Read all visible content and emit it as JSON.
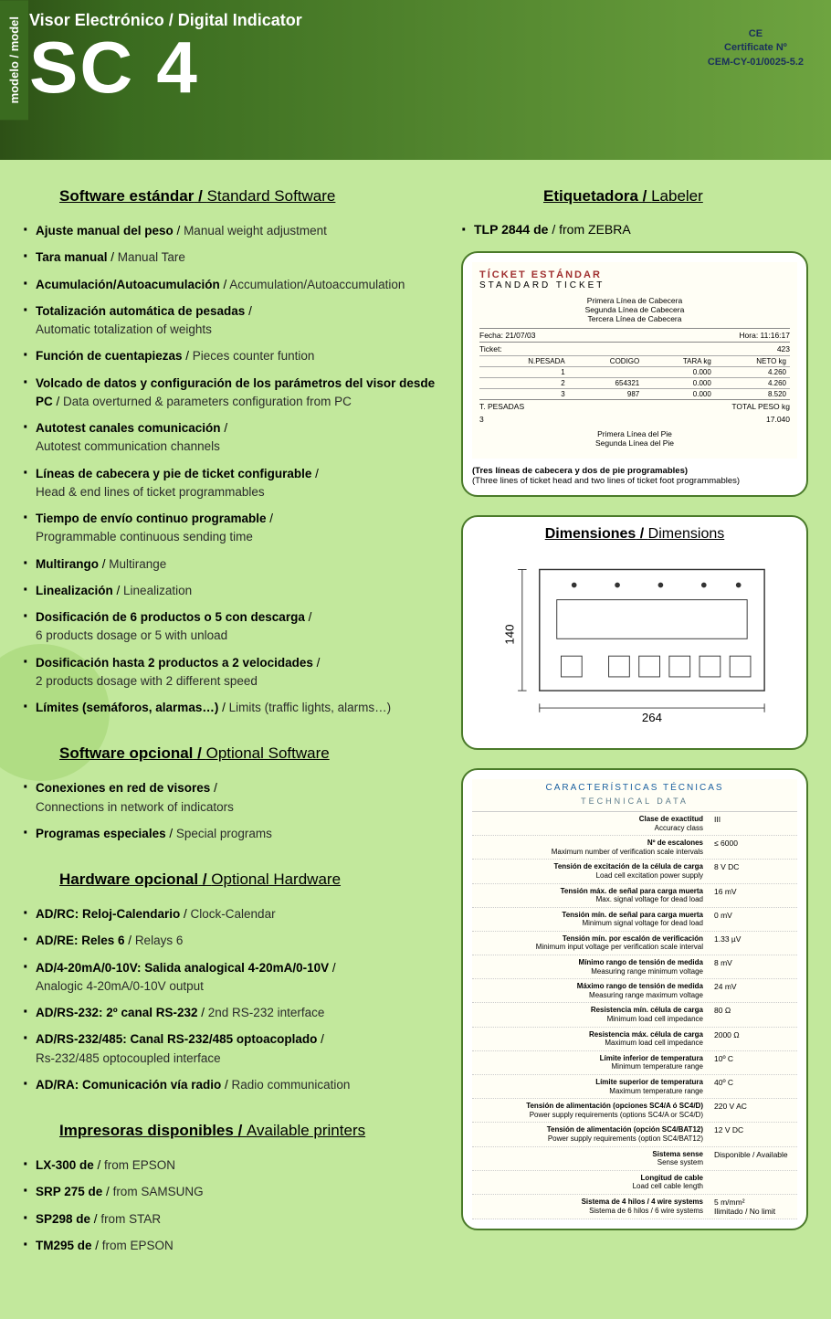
{
  "header": {
    "model_label": "modelo / model",
    "subtitle": "Visor Electrónico / Digital Indicator",
    "title": "SC 4",
    "cert1": "CE",
    "cert2": "Certificate Nº",
    "cert3": "CEM-CY-01/0025-5.2"
  },
  "sections": {
    "software_std": {
      "es": "Software estándar",
      "en": "Standard Software"
    },
    "software_opt": {
      "es": "Software opcional",
      "en": "Optional Software"
    },
    "hardware_opt": {
      "es": "Hardware opcional",
      "en": "Optional Hardware"
    },
    "printers": {
      "es": "Impresoras disponibles",
      "en": "Available printers"
    },
    "labeler": {
      "es": "Etiquetadora",
      "en": "Labeler"
    },
    "dimensions": {
      "es": "Dimensiones",
      "en": "Dimensions"
    }
  },
  "software_std_items": [
    {
      "es": "Ajuste manual del peso",
      "en": "Manual weight adjustment"
    },
    {
      "es": "Tara manual",
      "en": "Manual Tare"
    },
    {
      "es": "Acumulación/Autoacumulación",
      "en": "Accumulation/Autoaccumulation"
    },
    {
      "es": "Totalización automática de pesadas",
      "en_sub": "Automatic totalization of weights"
    },
    {
      "es": "Función de cuentapiezas",
      "en": "Pieces counter funtion"
    },
    {
      "es": "Volcado de datos y configuración de los parámetros del visor desde PC",
      "en": "Data overturned & parameters configuration from PC"
    },
    {
      "es": "Autotest canales comunicación",
      "en_sub": "Autotest communication channels"
    },
    {
      "es": "Líneas de cabecera y pie de ticket configurable",
      "en_sub": "Head & end lines of ticket programmables"
    },
    {
      "es": "Tiempo de envío continuo programable",
      "en_sub": "Programmable continuous sending time"
    },
    {
      "es": "Multirango",
      "en": "Multirange"
    },
    {
      "es": "Linealización",
      "en": "Linealization"
    },
    {
      "es": "Dosificación de 6 productos o 5 con descarga",
      "en_sub": "6 products dosage or 5 with unload"
    },
    {
      "es": "Dosificación hasta 2 productos a 2 velocidades",
      "en_sub": "2 products dosage with 2 different speed"
    },
    {
      "es": "Límites (semáforos, alarmas…)",
      "en": "Limits (traffic lights, alarms…)"
    }
  ],
  "software_opt_items": [
    {
      "es": "Conexiones en red de visores",
      "en_sub": "Connections in network of indicators"
    },
    {
      "es": "Programas especiales",
      "en": "Special programs"
    }
  ],
  "hardware_opt_items": [
    {
      "es": "AD/RC: Reloj-Calendario",
      "en": "Clock-Calendar"
    },
    {
      "es": "AD/RE: Reles 6",
      "en": "Relays 6"
    },
    {
      "es": "AD/4-20mA/0-10V: Salida analogical 4-20mA/0-10V",
      "en_sub": "Analogic 4-20mA/0-10V output"
    },
    {
      "es": "AD/RS-232: 2º canal RS-232",
      "en": "2nd RS-232 interface"
    },
    {
      "es": "AD/RS-232/485: Canal RS-232/485 optoacoplado",
      "en_sub": "Rs-232/485 optocoupled interface"
    },
    {
      "es": "AD/RA: Comunicación vía radio",
      "en": "Radio communication"
    }
  ],
  "printer_items": [
    {
      "es": "LX-300 de",
      "en": "from EPSON"
    },
    {
      "es": "SRP 275 de",
      "en": "from SAMSUNG"
    },
    {
      "es": "SP298 de",
      "en": "from STAR"
    },
    {
      "es": "TM295 de",
      "en": "from EPSON"
    }
  ],
  "labeler_item": {
    "es": "TLP 2844 de",
    "en": "from ZEBRA"
  },
  "ticket": {
    "head1": "TÍCKET ESTÁNDAR",
    "head2": "STANDARD TICKET",
    "l1": "Primera Línea de Cabecera",
    "l2": "Segunda Línea de Cabecera",
    "l3": "Tercera Línea de Cabecera",
    "fecha_l": "Fecha: 21/07/03",
    "hora_l": "Hora:  11:16:17",
    "ticket_l": "Ticket:",
    "ticket_v": "423",
    "cols": [
      "N.PESADA",
      "CODIGO",
      "TARA kg",
      "NETO kg"
    ],
    "rows": [
      [
        "1",
        "",
        "0.000",
        "4.260"
      ],
      [
        "2",
        "654321",
        "0.000",
        "4.260"
      ],
      [
        "3",
        "987",
        "0.000",
        "8.520"
      ]
    ],
    "total_l": "T. PESADAS",
    "total_r": "TOTAL PESO kg",
    "total_n": "3",
    "total_v": "17.040",
    "f1": "Primera Línea del Pie",
    "f2": "Segunda Línea del Pie",
    "note_es": "(Tres líneas de cabecera y dos de pie programables)",
    "note_en": "(Three lines of ticket head and two lines of ticket foot programmables)"
  },
  "dimensions": {
    "width": "264",
    "height": "140"
  },
  "tech": {
    "title1": "CARACTERÍSTICAS TÉCNICAS",
    "title2": "TECHNICAL DATA",
    "rows": [
      {
        "es": "Clase de exactitud",
        "en": "Accuracy class",
        "v": "III"
      },
      {
        "es": "Nº de escalones",
        "en": "Maximum number of verification scale intervals",
        "v": "≤ 6000"
      },
      {
        "es": "Tensión de excitación de la célula de carga",
        "en": "Load cell excitation power supply",
        "v": "8 V DC"
      },
      {
        "es": "Tensión máx. de señal para carga muerta",
        "en": "Max. signal voltage for dead load",
        "v": "16 mV"
      },
      {
        "es": "Tensión mín. de señal para carga muerta",
        "en": "Minimum signal voltage for dead load",
        "v": "0 mV"
      },
      {
        "es": "Tensión mín. por escalón de verificación",
        "en": "Minimum input voltage per verification scale interval",
        "v": "1.33 µV"
      },
      {
        "es": "Mínimo rango de tensión de medida",
        "en": "Measuring range minimum voltage",
        "v": "8 mV"
      },
      {
        "es": "Máximo rango de tensión de medida",
        "en": "Measuring range maximum voltage",
        "v": "24 mV"
      },
      {
        "es": "Resistencia mín. célula de carga",
        "en": "Minimum load cell impedance",
        "v": "80 Ω"
      },
      {
        "es": "Resistencia máx. célula de carga",
        "en": "Maximum load cell impedance",
        "v": "2000 Ω"
      },
      {
        "es": "Límite inferior de temperatura",
        "en": "Minimum temperature range",
        "v": "10º C"
      },
      {
        "es": "Límite superior de temperatura",
        "en": "Maximum temperature range",
        "v": "40º C"
      },
      {
        "es": "Tensión de alimentación (opciones SC4/A ó SC4/D)",
        "en": "Power supply requirements (options SC4/A or SC4/D)",
        "v": "220 V AC"
      },
      {
        "es": "Tensión de alimentación (opción SC4/BAT12)",
        "en": "Power supply requirements (option SC4/BAT12)",
        "v": "12 V DC"
      },
      {
        "es": "Sistema sense",
        "en": "Sense system",
        "v": "Disponible / Available"
      },
      {
        "es": "Longitud de cable",
        "en": "Load cell cable length",
        "v": ""
      },
      {
        "es": "Sistema de 4 hilos / 4 wire systems",
        "en": "Sistema de 6 hilos / 6 wire systems",
        "v": "5 m/mm²\nIlimitado / No limit"
      }
    ]
  }
}
